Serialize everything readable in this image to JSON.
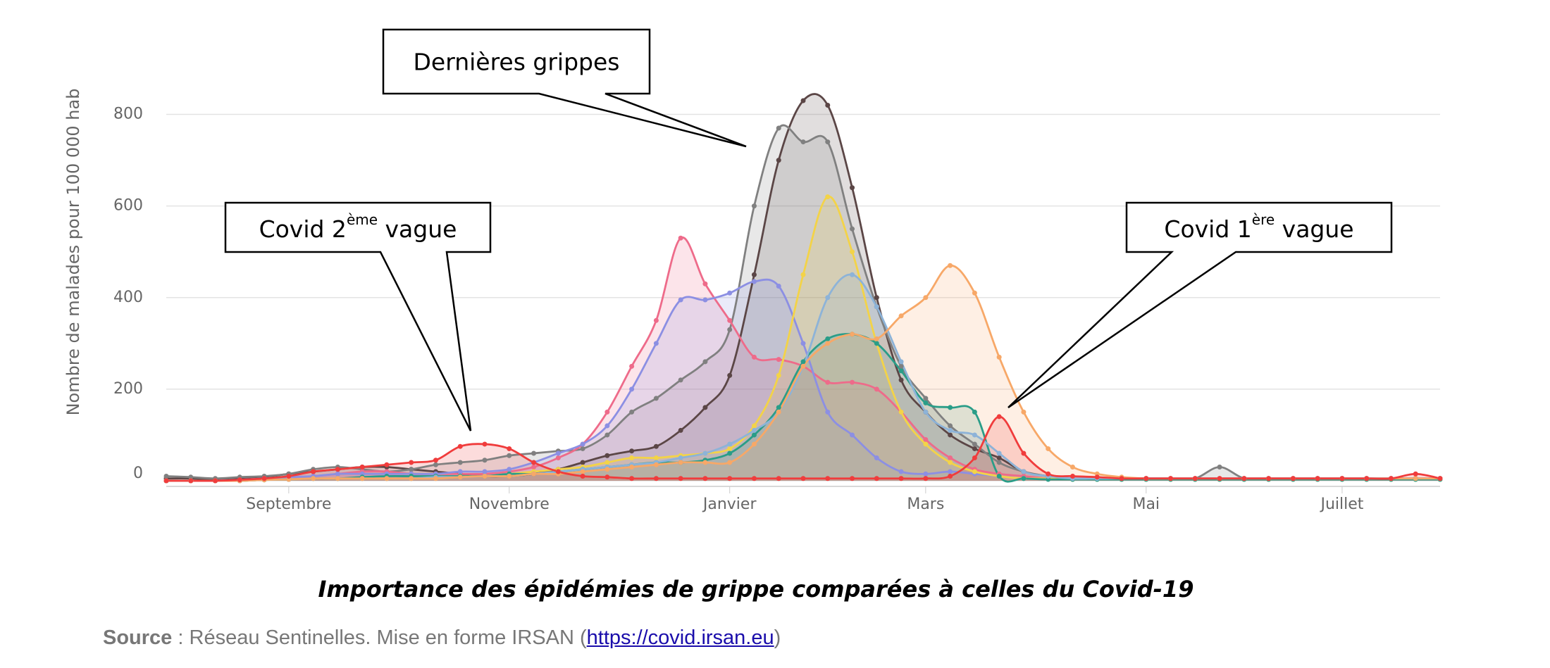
{
  "chart_data": {
    "type": "line",
    "title": "Importance des épidémies de grippe comparées à celles du Covid-19",
    "y_label": "Nombre de malades pour 100 000 hab",
    "categories": [
      null,
      null,
      null,
      null,
      null,
      "Septembre",
      null,
      null,
      null,
      null,
      null,
      null,
      null,
      null,
      "Novembre",
      null,
      null,
      null,
      null,
      null,
      null,
      null,
      null,
      "Janvier",
      null,
      null,
      null,
      null,
      null,
      null,
      null,
      "Mars",
      null,
      null,
      null,
      null,
      null,
      null,
      null,
      null,
      "Mai",
      null,
      null,
      null,
      null,
      null,
      null,
      null,
      "Juillet",
      null,
      null,
      null,
      null
    ],
    "ylim": [
      0,
      850
    ],
    "yticks": [
      0,
      200,
      400,
      600,
      800
    ],
    "grid": true,
    "series": [
      {
        "color": "#5b4646",
        "values": [
          5,
          5,
          3,
          5,
          8,
          15,
          20,
          25,
          30,
          30,
          25,
          20,
          15,
          10,
          10,
          15,
          25,
          40,
          55,
          65,
          75,
          110,
          160,
          230,
          450,
          700,
          830,
          820,
          640,
          400,
          220,
          150,
          100,
          70,
          50,
          20,
          10,
          5,
          5,
          5,
          5,
          5,
          5,
          5,
          5,
          5,
          5,
          5,
          5,
          5,
          5,
          5,
          5
        ]
      },
      {
        "color": "#808080",
        "values": [
          10,
          8,
          5,
          8,
          10,
          15,
          25,
          30,
          25,
          20,
          25,
          35,
          40,
          45,
          55,
          60,
          65,
          70,
          100,
          150,
          180,
          220,
          260,
          330,
          600,
          770,
          740,
          740,
          550,
          380,
          250,
          180,
          120,
          80,
          40,
          20,
          10,
          5,
          5,
          5,
          5,
          5,
          5,
          30,
          5,
          5,
          5,
          5,
          5,
          5,
          5,
          5,
          5
        ]
      },
      {
        "color": "#ee6b8a",
        "values": [
          0,
          0,
          0,
          2,
          5,
          8,
          10,
          15,
          20,
          20,
          15,
          15,
          15,
          15,
          20,
          30,
          50,
          80,
          150,
          250,
          350,
          530,
          430,
          350,
          270,
          265,
          250,
          215,
          215,
          200,
          150,
          90,
          50,
          25,
          15,
          10,
          5,
          5,
          5,
          5,
          5,
          5,
          5,
          5,
          5,
          5,
          5,
          5,
          5,
          5,
          5,
          5,
          5
        ]
      },
      {
        "color": "#8c8fe3",
        "values": [
          0,
          0,
          0,
          2,
          5,
          8,
          10,
          15,
          15,
          15,
          15,
          15,
          20,
          20,
          25,
          40,
          60,
          80,
          120,
          200,
          300,
          395,
          395,
          410,
          435,
          425,
          300,
          150,
          100,
          50,
          20,
          15,
          20,
          15,
          10,
          5,
          5,
          5,
          5,
          5,
          5,
          5,
          5,
          5,
          5,
          5,
          5,
          5,
          5,
          5,
          5,
          5,
          5
        ]
      },
      {
        "color": "#f3d348",
        "values": [
          0,
          0,
          0,
          0,
          2,
          3,
          5,
          5,
          5,
          5,
          5,
          8,
          10,
          10,
          15,
          20,
          25,
          30,
          40,
          50,
          50,
          55,
          60,
          70,
          120,
          230,
          450,
          620,
          500,
          300,
          150,
          80,
          40,
          20,
          10,
          5,
          5,
          3,
          3,
          3,
          3,
          3,
          3,
          3,
          3,
          3,
          3,
          3,
          3,
          3,
          3,
          3,
          3
        ]
      },
      {
        "color": "#2a9d88",
        "values": [
          0,
          0,
          0,
          0,
          2,
          3,
          5,
          5,
          8,
          10,
          10,
          10,
          10,
          10,
          15,
          15,
          20,
          25,
          30,
          35,
          40,
          40,
          45,
          60,
          100,
          160,
          260,
          310,
          320,
          300,
          240,
          170,
          160,
          150,
          10,
          5,
          3,
          3,
          3,
          3,
          3,
          3,
          3,
          3,
          3,
          3,
          3,
          3,
          3,
          3,
          3,
          3,
          3
        ]
      },
      {
        "color": "#8db3d8",
        "values": [
          0,
          0,
          0,
          0,
          2,
          3,
          5,
          5,
          5,
          5,
          5,
          8,
          8,
          10,
          10,
          15,
          20,
          25,
          30,
          35,
          40,
          50,
          60,
          80,
          110,
          150,
          250,
          400,
          450,
          380,
          260,
          150,
          110,
          100,
          60,
          20,
          10,
          5,
          5,
          5,
          5,
          5,
          5,
          5,
          5,
          5,
          5,
          5,
          5,
          5,
          5,
          5,
          5
        ]
      },
      {
        "color": "#f7a868",
        "values": [
          0,
          0,
          0,
          0,
          2,
          3,
          5,
          5,
          5,
          5,
          5,
          5,
          8,
          10,
          10,
          15,
          15,
          20,
          25,
          30,
          35,
          40,
          40,
          40,
          80,
          150,
          250,
          300,
          320,
          310,
          360,
          400,
          470,
          410,
          270,
          150,
          70,
          30,
          15,
          8,
          5,
          5,
          5,
          5,
          5,
          5,
          5,
          5,
          5,
          5,
          5,
          5,
          5
        ]
      },
      {
        "color": "#f03c3c",
        "values": [
          0,
          0,
          0,
          2,
          5,
          10,
          20,
          25,
          30,
          35,
          40,
          45,
          75,
          80,
          70,
          40,
          20,
          10,
          8,
          5,
          5,
          5,
          5,
          5,
          5,
          5,
          5,
          5,
          5,
          5,
          5,
          5,
          10,
          50,
          140,
          60,
          15,
          10,
          8,
          5,
          5,
          5,
          5,
          5,
          5,
          5,
          5,
          5,
          5,
          5,
          5,
          15,
          5
        ]
      }
    ],
    "annotations": [
      [
        "Dernières grippes"
      ],
      [
        "Covid 2",
        "ème",
        " vague"
      ],
      [
        "Covid 1",
        "ère",
        " vague"
      ]
    ],
    "source": [
      "Source",
      " : Réseau Sentinelles. Mise en forme IRSAN (",
      "https://covid.irsan.eu",
      ")"
    ]
  }
}
